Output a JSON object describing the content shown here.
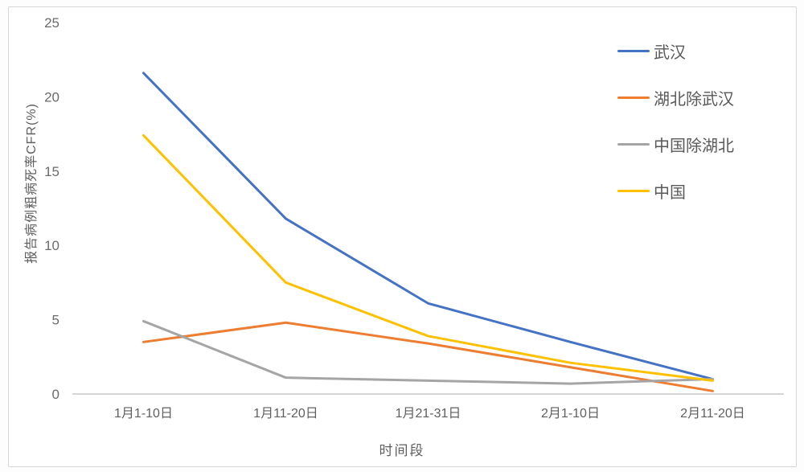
{
  "figure": {
    "border_color": "#d6d6d6",
    "axis_line_color": "#c9c9c9",
    "text_color": "#5f5f5f"
  },
  "chart_data": {
    "type": "line",
    "title": "",
    "categories": [
      "1月1-10日",
      "1月11-20日",
      "1月21-31日",
      "2月1-10日",
      "2月11-20日"
    ],
    "series": [
      {
        "name": "武汉",
        "color": "#4472C4",
        "values": [
          21.6,
          11.8,
          6.1,
          3.5,
          1.0
        ]
      },
      {
        "name": "湖北除武汉",
        "color": "#ED7D31",
        "values": [
          3.5,
          4.8,
          3.4,
          1.8,
          0.2
        ]
      },
      {
        "name": "中国除湖北",
        "color": "#A5A5A5",
        "values": [
          4.9,
          1.1,
          0.9,
          0.7,
          1.0
        ]
      },
      {
        "name": "中国",
        "color": "#FFC000",
        "values": [
          17.4,
          7.5,
          3.9,
          2.1,
          0.9
        ]
      }
    ],
    "xlabel": "时间段",
    "ylabel": "报告病例粗病死率CFR(%)",
    "ylim": [
      0,
      25
    ],
    "yticks": [
      0,
      5,
      10,
      15,
      20,
      25
    ],
    "grid": false,
    "legend_position": "right-top"
  }
}
